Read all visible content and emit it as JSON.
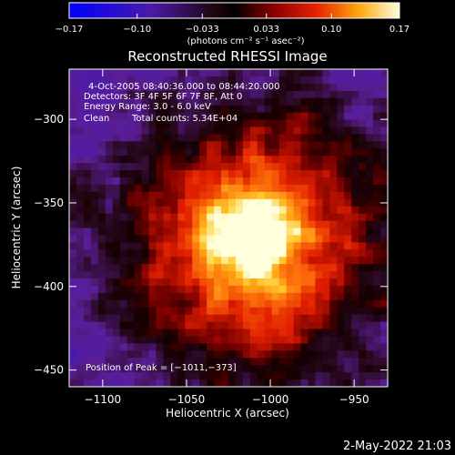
{
  "chart_data": {
    "type": "heatmap",
    "title": "Reconstructed RHESSI Image",
    "xlabel": "Heliocentric X (arcsec)",
    "ylabel": "Heliocentric Y (arcsec)",
    "xlim": [
      -1120,
      -930
    ],
    "ylim": [
      -460,
      -270
    ],
    "x_ticks": [
      -1100,
      -1050,
      -1000,
      -950
    ],
    "x_tick_labels": [
      "−1100",
      "−1050",
      "−1000",
      "−950"
    ],
    "y_ticks": [
      -300,
      -350,
      -400,
      -450
    ],
    "y_tick_labels": [
      "−300",
      "−350",
      "−400",
      "−450"
    ],
    "colorbar": {
      "min": -0.17,
      "max": 0.17,
      "ticks": [
        -0.17,
        -0.1,
        -0.033,
        0.033,
        0.1,
        0.17
      ],
      "tick_labels": [
        "−0.17",
        "−0.10",
        "−0.033",
        "0.033",
        "0.10",
        "0.17"
      ],
      "unit_label": "(photons cm⁻² s⁻¹ asec⁻²)",
      "colormap": "red-temperature with blue negatives"
    },
    "peak": {
      "x": -1011,
      "y": -373
    },
    "grid": false
  },
  "annotations": {
    "time_range": "4-Oct-2005 08:40:36.000 to 08:44:20.000",
    "detectors": "Detectors: 3F 4F 5F 6F 7F 8F, Att 0",
    "energy": "Energy Range: 3.0 - 6.0 keV",
    "method": "Clean",
    "counts": "Total counts: 5.34E+04",
    "peak_position": "Position of Peak = [−1011,−373]"
  },
  "footer": {
    "timestamp": "2-May-2022 21:03"
  }
}
